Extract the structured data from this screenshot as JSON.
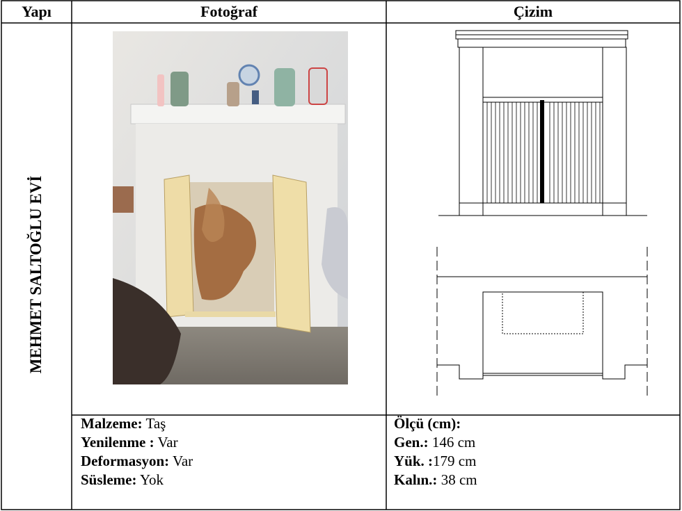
{
  "table": {
    "header": [
      "Yapı",
      "Fotoğraf",
      "Çizim"
    ],
    "building": "MEHMET SALTOĞLU EVİ",
    "details_left": [
      {
        "label": "Malzeme:",
        "value": "Taş"
      },
      {
        "label": "Yenilenme :",
        "value": "Var"
      },
      {
        "label": "Deformasyon:",
        "value": "Var"
      },
      {
        "label": "Süsleme:",
        "value": "Yok"
      }
    ],
    "details_right": [
      {
        "label": "Ölçü (cm):"
      },
      {
        "label": "Gen.:",
        "value": "146 cm"
      },
      {
        "label": "Yük. :",
        "value": "179 cm"
      },
      {
        "label": "Kalın.:",
        "value": "38 cm"
      }
    ]
  }
}
